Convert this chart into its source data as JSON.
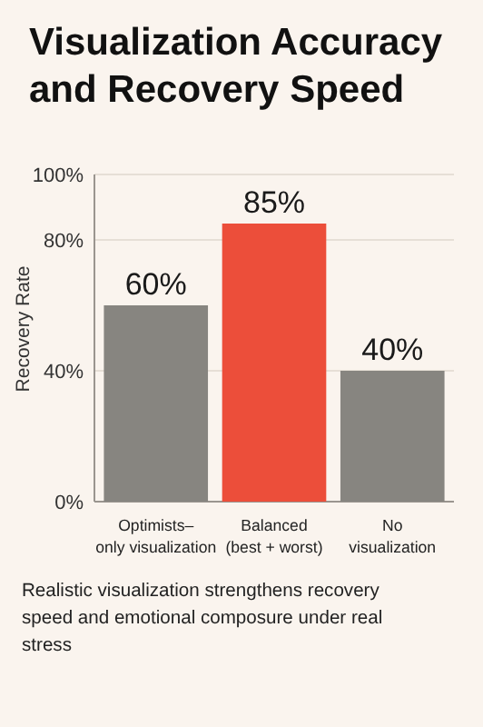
{
  "chart_data": {
    "type": "bar",
    "title": "Visualization Accuracy and Recovery Speed",
    "ylabel": "Recovery Rate",
    "categories": [
      "Optimists–only visualization",
      "Balanced (best + worst)",
      "No visualization"
    ],
    "values": [
      60,
      85,
      40
    ],
    "colors": [
      "#878580",
      "#ec4e3a",
      "#878580"
    ],
    "ylim": [
      0,
      100
    ],
    "yticks": [
      {
        "value": 0,
        "label": "0%"
      },
      {
        "value": 40,
        "label": "40%"
      },
      {
        "value": 80,
        "label": "80%"
      },
      {
        "value": 100,
        "label": "100%"
      }
    ],
    "value_labels": [
      "60%",
      "85%",
      "40%"
    ],
    "grid": "y",
    "annotations": [
      "Realistic visualization strengthens recovery speed and emotional composure under real stress"
    ]
  }
}
